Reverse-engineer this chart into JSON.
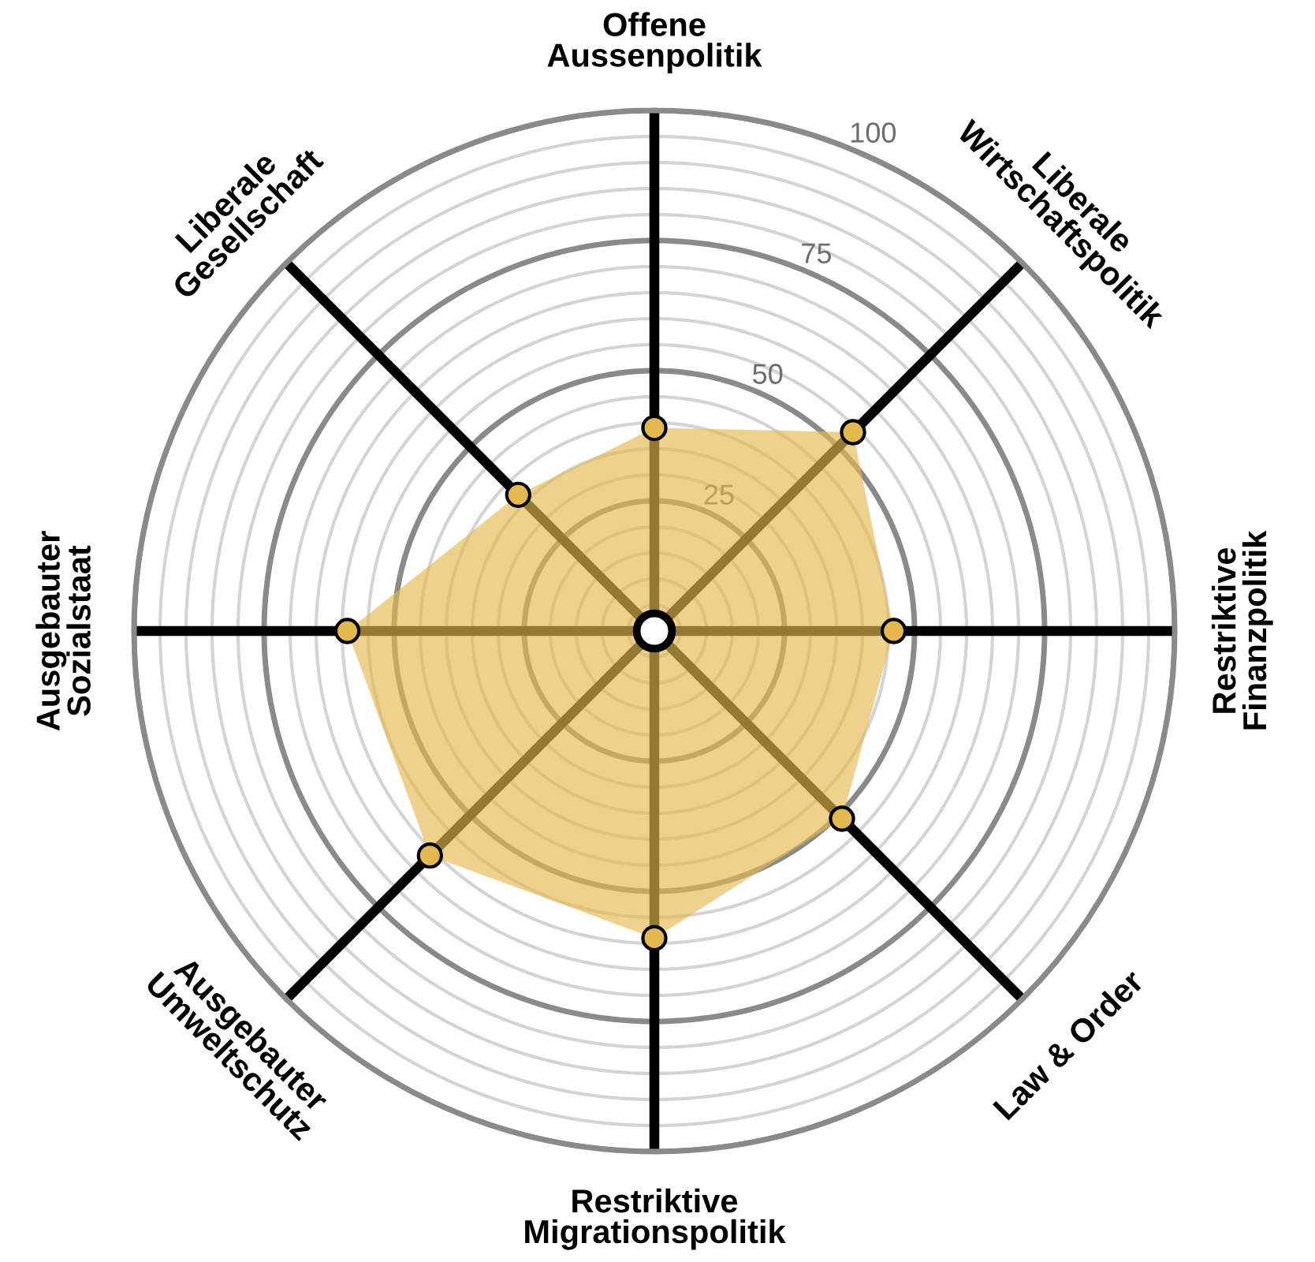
{
  "chart_data": {
    "type": "radar",
    "categories": [
      "Offene\nAussenpolitik",
      "Liberale\nWirtschaftspolitik",
      "Restriktive\nFinanzpolitik",
      "Law & Order",
      "Restriktive\nMigrationspolitik",
      "Ausgebauter\nUmweltschutz",
      "Ausgebauter\nSozialstaat",
      "Liberale\nGesellschaft"
    ],
    "series": [
      {
        "color": "#e3b94f",
        "values": [
          39,
          54,
          46,
          51,
          59,
          61,
          59,
          37
        ]
      }
    ],
    "ylim": [
      0,
      100
    ],
    "yticks": [
      25,
      50,
      75,
      100
    ],
    "grid": true,
    "marker": "circle",
    "legend": false
  }
}
